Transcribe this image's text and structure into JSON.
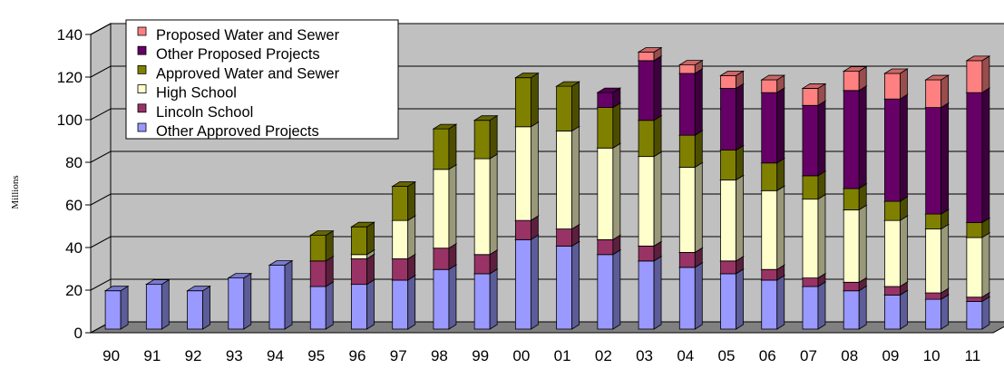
{
  "chart_data": {
    "type": "bar",
    "stacked": true,
    "three_d": true,
    "ylabel": "Millions",
    "xlabel": "",
    "title": "",
    "ylim": [
      0,
      140
    ],
    "yticks": [
      0,
      20,
      40,
      60,
      80,
      100,
      120,
      140
    ],
    "grid": true,
    "legend_position": "top-left",
    "categories": [
      "90",
      "91",
      "92",
      "93",
      "94",
      "95",
      "96",
      "97",
      "98",
      "99",
      "00",
      "01",
      "02",
      "03",
      "04",
      "05",
      "06",
      "07",
      "08",
      "09",
      "10",
      "11"
    ],
    "series": [
      {
        "name": "Other Approved Projects",
        "color": "#9999ff",
        "values": [
          18,
          21,
          18,
          24,
          30,
          20,
          21,
          23,
          28,
          26,
          42,
          39,
          35,
          32,
          29,
          26,
          23,
          20,
          18,
          16,
          14,
          13
        ]
      },
      {
        "name": "Lincoln School",
        "color": "#993366",
        "values": [
          0,
          0,
          0,
          0,
          0,
          12,
          12,
          10,
          10,
          9,
          9,
          8,
          7,
          7,
          7,
          6,
          5,
          4,
          4,
          4,
          3,
          2
        ]
      },
      {
        "name": "High School",
        "color": "#ffffcc",
        "values": [
          0,
          0,
          0,
          0,
          0,
          0,
          2,
          18,
          37,
          45,
          44,
          46,
          43,
          42,
          40,
          38,
          37,
          37,
          34,
          31,
          30,
          28
        ]
      },
      {
        "name": "Approved Water and Sewer",
        "color": "#808000",
        "values": [
          0,
          0,
          0,
          0,
          0,
          12,
          13,
          16,
          19,
          18,
          23,
          21,
          19,
          17,
          15,
          14,
          13,
          11,
          10,
          9,
          7,
          7
        ]
      },
      {
        "name": "Other Proposed Projects",
        "color": "#660066",
        "values": [
          0,
          0,
          0,
          0,
          0,
          0,
          0,
          0,
          0,
          0,
          0,
          0,
          7,
          28,
          29,
          29,
          33,
          33,
          46,
          48,
          50,
          61
        ]
      },
      {
        "name": "Proposed Water and Sewer",
        "color": "#ff8080",
        "values": [
          0,
          0,
          0,
          0,
          0,
          0,
          0,
          0,
          0,
          0,
          0,
          0,
          0,
          4,
          4,
          6,
          6,
          8,
          9,
          12,
          13,
          15
        ]
      }
    ],
    "legend_order": [
      "Proposed Water and Sewer",
      "Other Proposed Projects",
      "Approved Water and Sewer",
      "High School",
      "Lincoln School",
      "Other Approved Projects"
    ]
  }
}
